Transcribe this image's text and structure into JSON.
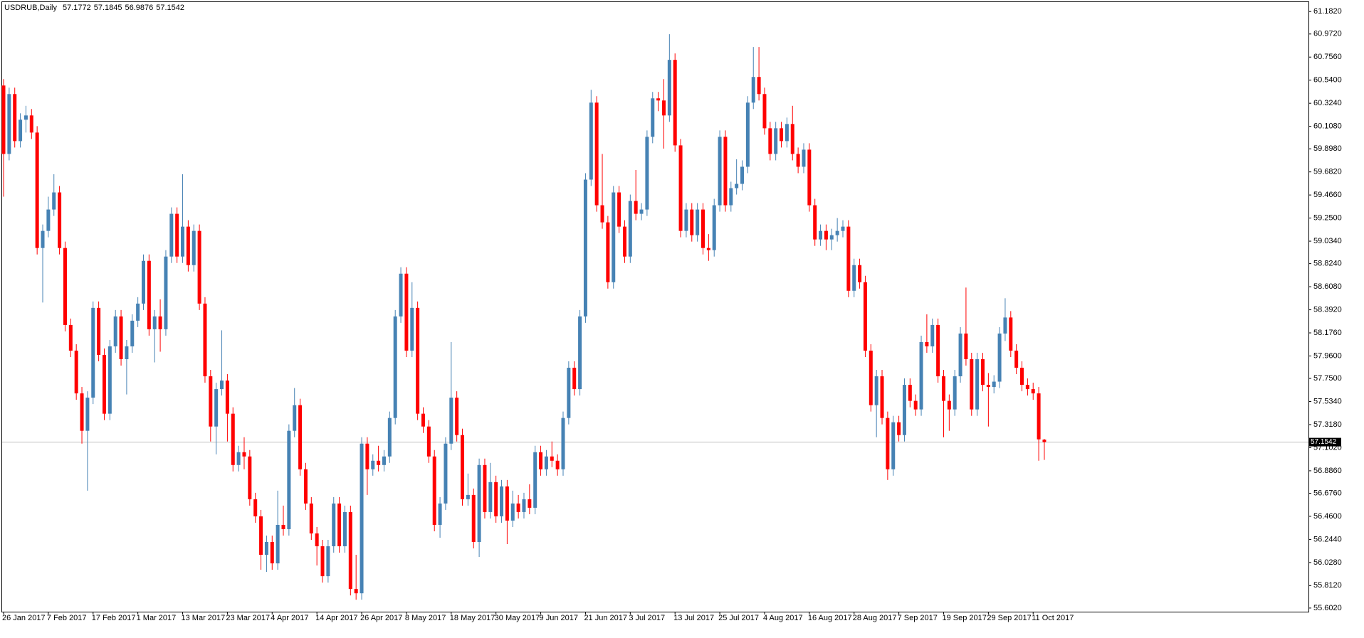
{
  "chart_data": {
    "type": "candlestick",
    "title": "USDRUB,Daily",
    "up_color": "#4682b4",
    "down_color": "#ff0000",
    "price_line_color": "#c0c0c0",
    "ylim": [
      55.568,
      61.27
    ],
    "yticks": [
      {
        "value": 61.182,
        "label": "61.1820"
      },
      {
        "value": 60.972,
        "label": "60.9720"
      },
      {
        "value": 60.756,
        "label": "60.7560"
      },
      {
        "value": 60.54,
        "label": "60.5400"
      },
      {
        "value": 60.324,
        "label": "60.3240"
      },
      {
        "value": 60.108,
        "label": "60.1080"
      },
      {
        "value": 59.898,
        "label": "59.8980"
      },
      {
        "value": 59.682,
        "label": "59.6820"
      },
      {
        "value": 59.466,
        "label": "59.4660"
      },
      {
        "value": 59.25,
        "label": "59.2500"
      },
      {
        "value": 59.034,
        "label": "59.0340"
      },
      {
        "value": 58.824,
        "label": "58.8240"
      },
      {
        "value": 58.608,
        "label": "58.6080"
      },
      {
        "value": 58.392,
        "label": "58.3920"
      },
      {
        "value": 58.176,
        "label": "58.1760"
      },
      {
        "value": 57.96,
        "label": "57.9600"
      },
      {
        "value": 57.75,
        "label": "57.7500"
      },
      {
        "value": 57.534,
        "label": "57.5340"
      },
      {
        "value": 57.318,
        "label": "57.3180"
      },
      {
        "value": 57.102,
        "label": "57.1020"
      },
      {
        "value": 56.886,
        "label": "56.8860"
      },
      {
        "value": 56.676,
        "label": "56.6760"
      },
      {
        "value": 56.46,
        "label": "56.4600"
      },
      {
        "value": 56.244,
        "label": "56.2440"
      },
      {
        "value": 56.028,
        "label": "56.0280"
      },
      {
        "value": 55.812,
        "label": "55.8120"
      },
      {
        "value": 55.602,
        "label": "55.6020"
      }
    ],
    "categories": [
      "26 Jan 2017",
      null,
      null,
      null,
      null,
      null,
      null,
      null,
      "7 Feb 2017",
      null,
      null,
      null,
      null,
      null,
      null,
      null,
      "17 Feb 2017",
      null,
      null,
      null,
      null,
      null,
      null,
      null,
      "1 Mar 2017",
      null,
      null,
      null,
      null,
      null,
      null,
      null,
      "13 Mar 2017",
      null,
      null,
      null,
      null,
      null,
      null,
      null,
      "23 Mar 2017",
      null,
      null,
      null,
      null,
      null,
      null,
      null,
      "4 Apr 2017",
      null,
      null,
      null,
      null,
      null,
      null,
      null,
      "14 Apr 2017",
      null,
      null,
      null,
      null,
      null,
      null,
      null,
      "26 Apr 2017",
      null,
      null,
      null,
      null,
      null,
      null,
      null,
      "8 May 2017",
      null,
      null,
      null,
      null,
      null,
      null,
      null,
      "18 May 2017",
      null,
      null,
      null,
      null,
      null,
      null,
      null,
      "30 May 2017",
      null,
      null,
      null,
      null,
      null,
      null,
      null,
      "9 Jun 2017",
      null,
      null,
      null,
      null,
      null,
      null,
      null,
      "21 Jun 2017",
      null,
      null,
      null,
      null,
      null,
      null,
      null,
      "3 Jul 2017",
      null,
      null,
      null,
      null,
      null,
      null,
      null,
      "13 Jul 2017",
      null,
      null,
      null,
      null,
      null,
      null,
      null,
      "25 Jul 2017",
      null,
      null,
      null,
      null,
      null,
      null,
      null,
      "4 Aug 2017",
      null,
      null,
      null,
      null,
      null,
      null,
      null,
      "16 Aug 2017",
      null,
      null,
      null,
      null,
      null,
      null,
      null,
      "28 Aug 2017",
      null,
      null,
      null,
      null,
      null,
      null,
      null,
      "7 Sep 2017",
      null,
      null,
      null,
      null,
      null,
      null,
      null,
      "19 Sep 2017",
      null,
      null,
      null,
      null,
      null,
      null,
      null,
      "29 Sep 2017",
      null,
      null,
      null,
      null,
      null,
      null,
      null,
      "11 Oct 2017",
      null,
      null
    ],
    "open": [
      60.49,
      59.85,
      60.41,
      59.97,
      60.17,
      60.21,
      60.05,
      58.97,
      59.13,
      59.33,
      59.49,
      58.97,
      58.25,
      58.01,
      57.61,
      57.26,
      57.57,
      58.41,
      57.97,
      57.42,
      58.05,
      58.33,
      57.93,
      58.05,
      58.29,
      58.45,
      58.85,
      58.21,
      58.33,
      58.21,
      58.89,
      59.29,
      58.89,
      59.17,
      58.81,
      59.13,
      58.45,
      57.77,
      57.3,
      57.65,
      57.73,
      57.42,
      56.94,
      57.06,
      57.02,
      56.62,
      56.46,
      56.1,
      56.22,
      56.02,
      56.38,
      56.34,
      57.26,
      57.5,
      56.9,
      56.58,
      56.3,
      56.18,
      55.9,
      56.18,
      56.58,
      56.18,
      56.5,
      55.78,
      55.74,
      57.14,
      56.9,
      56.98,
      56.94,
      57.02,
      57.38,
      58.33,
      58.73,
      58.01,
      58.41,
      57.42,
      57.3,
      57.02,
      56.38,
      56.58,
      57.14,
      57.57,
      57.22,
      56.62,
      56.66,
      56.22,
      56.94,
      56.5,
      56.78,
      56.46,
      56.74,
      56.42,
      56.58,
      56.5,
      56.62,
      56.54,
      57.06,
      56.9,
      57.02,
      56.98,
      56.9,
      57.38,
      57.85,
      57.65,
      58.33,
      59.61,
      60.33,
      59.37,
      59.21,
      58.65,
      59.49,
      59.17,
      58.89,
      59.41,
      59.29,
      59.33,
      60.01,
      60.37,
      60.35,
      60.21,
      60.73,
      59.93,
      59.13,
      59.33,
      59.09,
      59.33,
      58.97,
      58.95,
      59.37,
      60.01,
      59.37,
      59.53,
      59.57,
      59.73,
      60.33,
      60.57,
      60.41,
      60.09,
      59.85,
      60.09,
      59.97,
      60.13,
      59.85,
      59.73,
      59.89,
      59.37,
      59.05,
      59.13,
      59.05,
      59.09,
      59.13,
      59.17,
      58.57,
      58.81,
      58.65,
      58.01,
      57.5,
      57.77,
      57.38,
      56.9,
      57.34,
      57.22,
      57.69,
      57.54,
      57.46,
      58.09,
      58.05,
      58.25,
      57.77,
      57.54,
      57.46,
      57.77,
      58.17,
      57.93,
      57.46,
      57.93,
      57.69,
      57.67,
      57.72,
      58.17,
      58.32,
      58.01,
      57.85,
      57.69,
      57.65,
      57.61,
      57.1772
    ],
    "high": [
      60.55,
      60.47,
      60.47,
      60.23,
      60.3,
      60.27,
      60.11,
      59.19,
      59.45,
      59.66,
      59.55,
      59.03,
      58.31,
      58.07,
      57.67,
      57.63,
      58.47,
      58.47,
      58.03,
      58.11,
      58.39,
      58.39,
      58.11,
      58.35,
      58.51,
      58.91,
      58.91,
      58.39,
      58.49,
      58.95,
      59.35,
      59.35,
      59.66,
      59.23,
      59.19,
      59.19,
      58.51,
      57.83,
      57.71,
      58.2,
      57.79,
      57.48,
      57.12,
      57.2,
      57.08,
      56.68,
      56.52,
      56.28,
      56.28,
      56.7,
      56.56,
      57.32,
      57.66,
      57.56,
      56.96,
      56.64,
      56.36,
      56.24,
      56.24,
      56.64,
      56.64,
      56.56,
      56.56,
      56.1,
      57.2,
      57.2,
      57.04,
      57.12,
      57.08,
      57.44,
      58.39,
      58.79,
      58.79,
      58.65,
      58.47,
      57.48,
      57.36,
      57.08,
      56.64,
      57.2,
      58.09,
      57.63,
      57.28,
      56.86,
      56.72,
      57.0,
      57.0,
      56.96,
      56.84,
      56.8,
      56.8,
      56.7,
      56.66,
      56.68,
      56.76,
      57.12,
      57.12,
      57.08,
      57.16,
      57.04,
      57.44,
      57.91,
      57.91,
      58.39,
      59.67,
      60.45,
      60.39,
      59.85,
      59.27,
      59.55,
      59.55,
      59.23,
      59.47,
      59.7,
      59.39,
      60.07,
      60.43,
      60.43,
      60.55,
      60.97,
      60.79,
      59.99,
      59.39,
      59.39,
      59.39,
      59.39,
      59.1,
      59.43,
      60.07,
      60.07,
      59.59,
      59.8,
      59.79,
      60.39,
      60.85,
      60.85,
      60.47,
      60.15,
      60.15,
      60.15,
      60.19,
      60.3,
      59.91,
      59.95,
      59.95,
      59.43,
      59.19,
      59.19,
      59.15,
      59.25,
      59.23,
      59.23,
      58.87,
      58.87,
      58.71,
      58.07,
      57.83,
      57.83,
      57.44,
      57.4,
      57.4,
      57.75,
      57.75,
      57.6,
      58.15,
      58.35,
      58.31,
      58.31,
      57.83,
      57.6,
      57.83,
      58.23,
      58.6,
      57.99,
      57.99,
      57.99,
      57.8,
      57.78,
      58.23,
      58.5,
      58.38,
      58.07,
      57.91,
      57.75,
      57.71,
      57.67,
      57.1845
    ],
    "low": [
      59.45,
      59.79,
      59.91,
      59.91,
      60.05,
      59.99,
      58.91,
      58.46,
      59.07,
      59.27,
      58.91,
      58.19,
      57.95,
      57.55,
      57.14,
      56.7,
      57.51,
      57.91,
      57.36,
      57.36,
      57.99,
      57.87,
      57.6,
      57.99,
      58.23,
      58.39,
      58.15,
      57.9,
      58.0,
      58.15,
      58.83,
      58.83,
      58.83,
      58.75,
      58.75,
      58.39,
      57.71,
      57.16,
      57.04,
      57.59,
      57.16,
      56.88,
      56.88,
      56.9,
      56.56,
      56.4,
      55.96,
      55.94,
      55.96,
      55.96,
      56.28,
      56.28,
      57.2,
      56.84,
      56.52,
      56.24,
      56.0,
      55.84,
      55.84,
      56.12,
      56.12,
      56.12,
      55.72,
      55.68,
      55.68,
      56.66,
      56.84,
      56.88,
      56.88,
      56.96,
      57.32,
      58.27,
      57.95,
      57.95,
      57.36,
      57.24,
      56.96,
      56.32,
      56.26,
      56.52,
      57.08,
      57.16,
      56.56,
      56.56,
      56.16,
      56.08,
      56.44,
      56.44,
      56.4,
      56.4,
      56.2,
      56.36,
      56.44,
      56.44,
      56.48,
      56.48,
      56.84,
      56.84,
      56.92,
      56.84,
      56.84,
      57.32,
      57.59,
      57.59,
      58.27,
      59.55,
      59.31,
      59.15,
      58.59,
      58.59,
      59.11,
      58.83,
      58.83,
      59.23,
      59.23,
      59.27,
      59.95,
      60.25,
      59.9,
      60.15,
      59.87,
      59.07,
      59.07,
      59.03,
      59.03,
      58.91,
      58.85,
      58.89,
      59.31,
      59.31,
      59.31,
      59.47,
      59.51,
      59.67,
      60.27,
      60.35,
      60.03,
      59.79,
      59.79,
      59.91,
      59.91,
      59.79,
      59.67,
      59.67,
      59.31,
      58.99,
      58.99,
      58.95,
      58.95,
      59.03,
      59.07,
      58.51,
      58.51,
      58.59,
      57.95,
      57.44,
      57.2,
      57.32,
      56.8,
      56.84,
      57.16,
      57.16,
      57.48,
      57.4,
      57.4,
      57.99,
      57.99,
      57.71,
      57.2,
      57.26,
      57.4,
      57.71,
      57.87,
      57.4,
      57.4,
      57.63,
      57.3,
      57.61,
      57.66,
      58.1,
      57.95,
      57.79,
      57.63,
      57.59,
      57.55,
      56.98,
      56.9876
    ],
    "close": [
      59.85,
      60.41,
      59.97,
      60.17,
      60.21,
      60.05,
      58.97,
      59.13,
      59.33,
      59.49,
      58.97,
      58.25,
      58.01,
      57.61,
      57.26,
      57.57,
      58.41,
      57.97,
      57.42,
      58.05,
      58.33,
      57.93,
      58.05,
      58.29,
      58.45,
      58.85,
      58.21,
      58.33,
      58.21,
      58.89,
      59.29,
      58.89,
      59.17,
      58.81,
      59.13,
      58.45,
      57.77,
      57.3,
      57.65,
      57.73,
      57.42,
      56.94,
      57.06,
      57.02,
      56.62,
      56.46,
      56.1,
      56.22,
      56.02,
      56.38,
      56.34,
      57.26,
      57.5,
      56.9,
      56.58,
      56.3,
      56.18,
      55.9,
      56.18,
      56.58,
      56.18,
      56.5,
      55.78,
      55.74,
      57.14,
      56.9,
      56.98,
      56.94,
      57.02,
      57.38,
      58.33,
      58.73,
      58.01,
      58.41,
      57.42,
      57.3,
      57.02,
      56.38,
      56.58,
      57.14,
      57.57,
      57.22,
      56.62,
      56.66,
      56.22,
      56.94,
      56.5,
      56.78,
      56.46,
      56.74,
      56.42,
      56.58,
      56.5,
      56.62,
      56.54,
      57.06,
      56.9,
      57.02,
      56.98,
      56.9,
      57.38,
      57.85,
      57.65,
      58.33,
      59.61,
      60.33,
      59.37,
      59.21,
      58.65,
      59.49,
      59.17,
      58.89,
      59.41,
      59.29,
      59.33,
      60.01,
      60.37,
      60.35,
      60.21,
      60.73,
      59.93,
      59.13,
      59.33,
      59.09,
      59.33,
      58.97,
      58.95,
      59.37,
      60.01,
      59.37,
      59.53,
      59.57,
      59.73,
      60.33,
      60.57,
      60.41,
      60.09,
      59.85,
      60.09,
      59.97,
      60.13,
      59.85,
      59.73,
      59.89,
      59.37,
      59.05,
      59.13,
      59.05,
      59.09,
      59.13,
      59.17,
      58.57,
      58.81,
      58.65,
      58.01,
      57.5,
      57.77,
      57.38,
      56.9,
      57.34,
      57.22,
      57.69,
      57.54,
      57.46,
      58.09,
      58.05,
      58.25,
      57.77,
      57.54,
      57.46,
      57.77,
      58.17,
      57.93,
      57.46,
      57.93,
      57.69,
      57.67,
      57.72,
      58.17,
      58.32,
      58.01,
      57.85,
      57.69,
      57.65,
      57.61,
      57.18,
      57.1542
    ]
  }
}
